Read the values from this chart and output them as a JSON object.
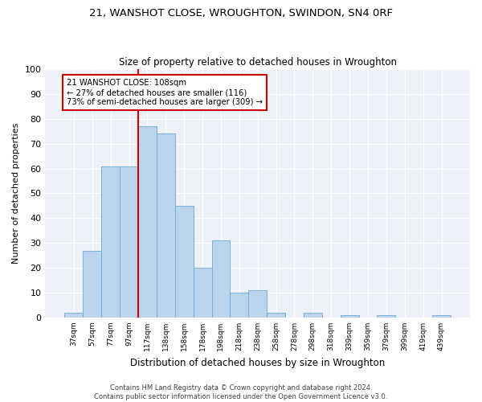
{
  "title": "21, WANSHOT CLOSE, WROUGHTON, SWINDON, SN4 0RF",
  "subtitle": "Size of property relative to detached houses in Wroughton",
  "xlabel": "Distribution of detached houses by size in Wroughton",
  "ylabel": "Number of detached properties",
  "bar_color": "#bad4ee",
  "bar_edge_color": "#6aaad4",
  "bin_labels": [
    "37sqm",
    "57sqm",
    "77sqm",
    "97sqm",
    "117sqm",
    "138sqm",
    "158sqm",
    "178sqm",
    "198sqm",
    "218sqm",
    "238sqm",
    "258sqm",
    "278sqm",
    "298sqm",
    "318sqm",
    "339sqm",
    "359sqm",
    "379sqm",
    "399sqm",
    "419sqm",
    "439sqm"
  ],
  "bar_heights": [
    2,
    27,
    61,
    61,
    77,
    74,
    45,
    20,
    31,
    10,
    11,
    2,
    0,
    2,
    0,
    1,
    0,
    1,
    0,
    0,
    1
  ],
  "ylim": [
    0,
    100
  ],
  "yticks": [
    0,
    10,
    20,
    30,
    40,
    50,
    60,
    70,
    80,
    90,
    100
  ],
  "vline_x": 3.5,
  "annotation_line1": "21 WANSHOT CLOSE: 108sqm",
  "annotation_line2": "← 27% of detached houses are smaller (116)",
  "annotation_line3": "73% of semi-detached houses are larger (309) →",
  "annotation_box_color": "#ffffff",
  "annotation_box_edge": "#cc0000",
  "vline_color": "#cc0000",
  "background_color": "#eef2f8",
  "footer": "Contains HM Land Registry data © Crown copyright and database right 2024.\nContains public sector information licensed under the Open Government Licence v3.0."
}
